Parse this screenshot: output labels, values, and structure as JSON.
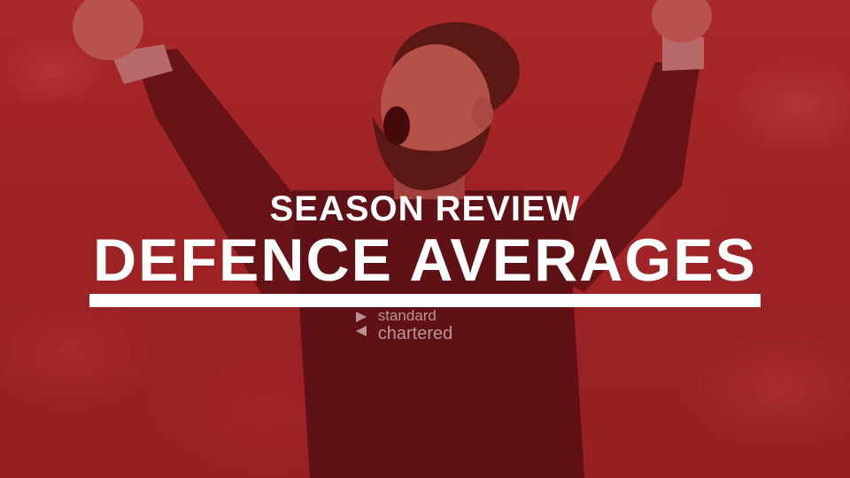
{
  "banner": {
    "subtitle": "SEASON REVIEW",
    "title": "DEFENCE AVERAGES",
    "sponsor_line1": "standard",
    "sponsor_line2": "chartered"
  },
  "colors": {
    "overlay": "#8c1419",
    "text": "#ffffff",
    "rule": "#ffffff"
  }
}
